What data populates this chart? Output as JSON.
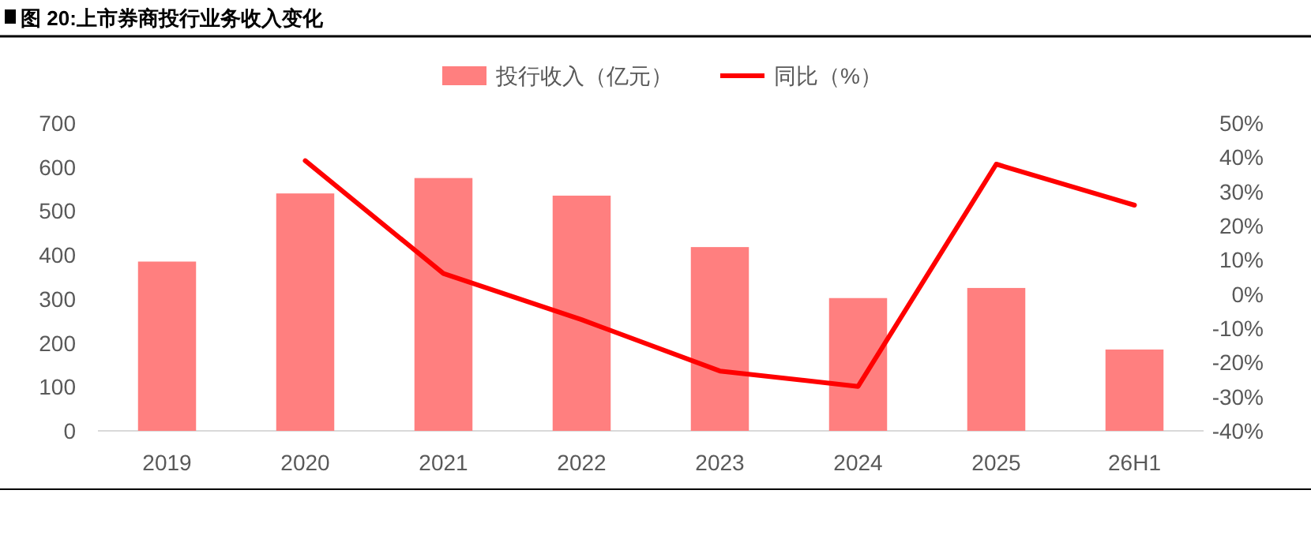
{
  "chart_data": {
    "type": "bar",
    "title": "图 20:上市券商投行业务收入变化",
    "categories": [
      "2019",
      "2020",
      "2021",
      "2022",
      "2023",
      "2024",
      "2025",
      "26H1"
    ],
    "series": [
      {
        "name": "投行收入（亿元）",
        "color": "#ff7f7f",
        "values": [
          385,
          540,
          575,
          535,
          418,
          302,
          325,
          185
        ]
      },
      {
        "name": "同比（%）",
        "type": "line",
        "axis": "y2",
        "color": "#ff0000",
        "values": [
          null,
          39,
          6,
          -7.5,
          -22.5,
          -27,
          38,
          26
        ]
      }
    ],
    "ylim": [
      0,
      700
    ],
    "yticks": [
      0,
      100,
      200,
      300,
      400,
      500,
      600,
      700
    ],
    "y2lim": [
      -40,
      50
    ],
    "y2ticks": [
      {
        "value": -40,
        "label": "-40%"
      },
      {
        "value": -30,
        "label": "-30%"
      },
      {
        "value": -20,
        "label": "-20%"
      },
      {
        "value": -10,
        "label": "-10%"
      },
      {
        "value": 0,
        "label": "0%"
      },
      {
        "value": 10,
        "label": "10%"
      },
      {
        "value": 20,
        "label": "20%"
      },
      {
        "value": 30,
        "label": "30%"
      },
      {
        "value": 40,
        "label": "40%"
      },
      {
        "value": 50,
        "label": "50%"
      }
    ],
    "legend": "top",
    "grid": false
  }
}
